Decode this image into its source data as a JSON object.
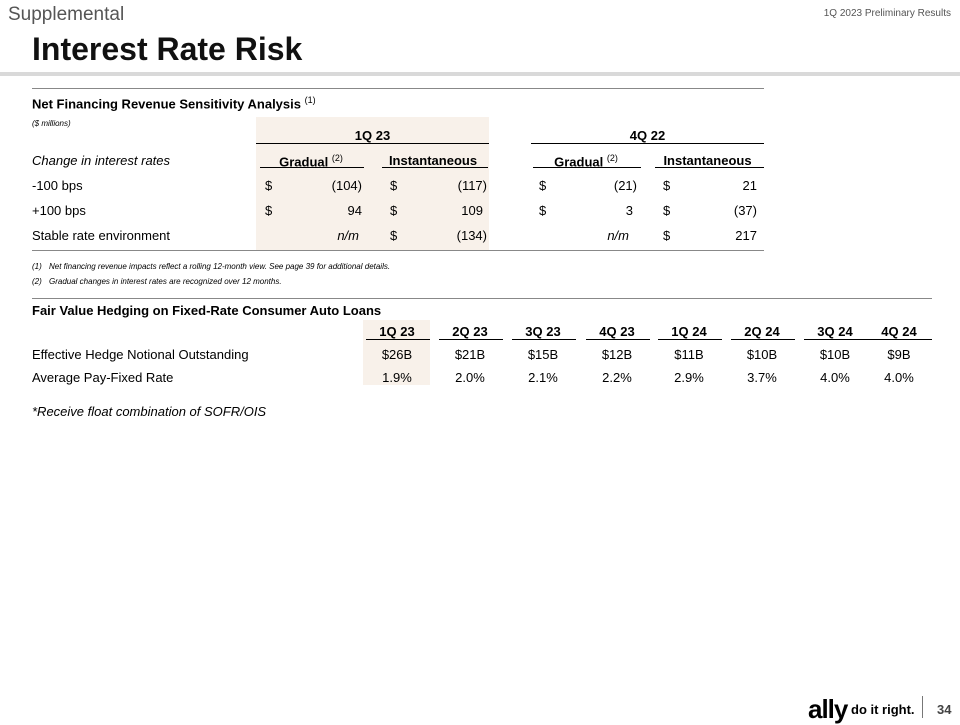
{
  "header": {
    "section_label": "Supplemental",
    "report_label": "1Q 2023 Preliminary Results",
    "title": "Interest Rate Risk"
  },
  "sensitivity": {
    "title": "Net Financing Revenue Sensitivity Analysis",
    "title_note": "(1)",
    "units": "($ millions)",
    "periods": [
      "1Q 23",
      "4Q 22"
    ],
    "row_header": "Change in interest rates",
    "col_gradual": "Gradual",
    "col_gradual_note": "(2)",
    "col_instant": "Instantaneous",
    "rows": [
      {
        "label": "-100 bps",
        "q1_grad_sym": "$",
        "q1_grad": "(104)",
        "q1_inst_sym": "$",
        "q1_inst": "(117)",
        "q4_grad_sym": "$",
        "q4_grad": "(21)",
        "q4_inst_sym": "$",
        "q4_inst": "21"
      },
      {
        "label": "+100 bps",
        "q1_grad_sym": "$",
        "q1_grad": "94",
        "q1_inst_sym": "$",
        "q1_inst": "109",
        "q4_grad_sym": "$",
        "q4_grad": "3",
        "q4_inst_sym": "$",
        "q4_inst": "(37)"
      },
      {
        "label": "Stable rate environment",
        "q1_grad_sym": "",
        "q1_grad": "n/m",
        "q1_inst_sym": "$",
        "q1_inst": "(134)",
        "q4_grad_sym": "",
        "q4_grad": "n/m",
        "q4_inst_sym": "$",
        "q4_inst": "217"
      }
    ],
    "footnotes": [
      {
        "num": "(1)",
        "text": "Net financing revenue impacts reflect a rolling 12-month view. See page 39 for additional details."
      },
      {
        "num": "(2)",
        "text": "Gradual changes in interest rates are recognized over 12 months."
      }
    ]
  },
  "hedging": {
    "title": "Fair Value Hedging on Fixed-Rate Consumer Auto Loans",
    "columns": [
      "1Q 23",
      "2Q 23",
      "3Q 23",
      "4Q 23",
      "1Q 24",
      "2Q 24",
      "3Q 24",
      "4Q 24"
    ],
    "rows": [
      {
        "label": "Effective Hedge Notional Outstanding",
        "values": [
          "$26B",
          "$21B",
          "$15B",
          "$12B",
          "$11B",
          "$10B",
          "$10B",
          "$9B"
        ]
      },
      {
        "label": "Average Pay-Fixed Rate",
        "values": [
          "1.9%",
          "2.0%",
          "2.1%",
          "2.2%",
          "2.9%",
          "3.7%",
          "4.0%",
          "4.0%"
        ]
      }
    ],
    "footnote": "*Receive float combination of SOFR/OIS"
  },
  "footer": {
    "logo_text": "ally",
    "tagline": "do it right.",
    "page_number": "34"
  },
  "colors": {
    "highlight": "#f8f1ea",
    "rule": "#888888",
    "header_bar": "#d9d9d9"
  }
}
